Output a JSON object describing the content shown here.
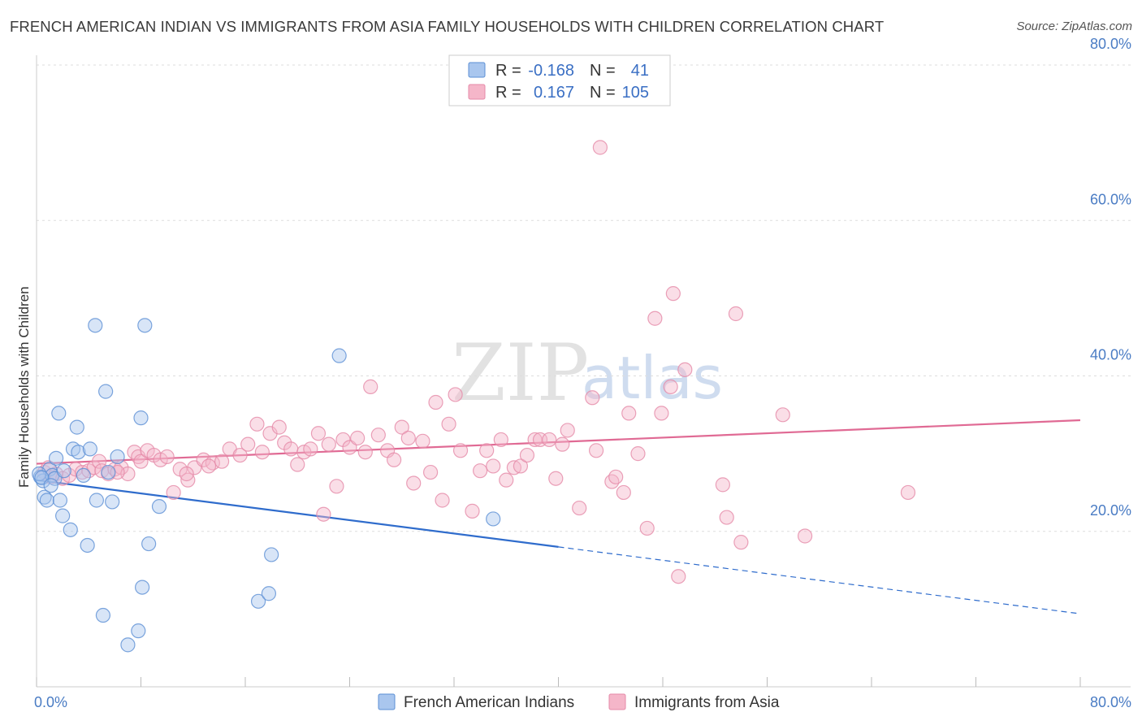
{
  "header": {
    "title": "FRENCH AMERICAN INDIAN VS IMMIGRANTS FROM ASIA FAMILY HOUSEHOLDS WITH CHILDREN CORRELATION CHART",
    "source": "Source: ZipAtlas.com"
  },
  "watermark": {
    "zip": "ZIP",
    "atlas": "atlas"
  },
  "colors": {
    "blue_fill": "#a9c6ee",
    "blue_stroke": "#5b8fd4",
    "blue_line": "#2f6ccc",
    "pink_fill": "#f5b6c9",
    "pink_stroke": "#e58aa8",
    "pink_line": "#e06a94",
    "tick_text": "#4a7cc4",
    "grid": "#dddddd"
  },
  "legend": {
    "r_label": "R =",
    "n_label": "N =",
    "rows": [
      {
        "r": "-0.168",
        "n": "41"
      },
      {
        "r": "0.167",
        "n": "105"
      }
    ]
  },
  "chart_data": {
    "type": "scatter",
    "title": "FRENCH AMERICAN INDIAN VS IMMIGRANTS FROM ASIA FAMILY HOUSEHOLDS WITH CHILDREN CORRELATION CHART",
    "xlabel": "",
    "ylabel": "Family Households with Children",
    "xlim": [
      0,
      80
    ],
    "ylim": [
      0,
      80
    ],
    "x_tick_labels": [
      "0.0%",
      "80.0%"
    ],
    "y_ticks": [
      20,
      40,
      60,
      80
    ],
    "y_tick_labels": [
      "20.0%",
      "40.0%",
      "60.0%",
      "80.0%"
    ],
    "grid": true,
    "legend_position": "bottom",
    "series": [
      {
        "name": "French American Indians",
        "color": "blue",
        "r": -0.168,
        "n": 41,
        "trend": {
          "x0": 0,
          "y0": 26.6,
          "x1": 40,
          "y1": 18.0,
          "dashed_to_x": 80,
          "dashed_to_y": 9.4
        },
        "points": [
          [
            0.3,
            27.0
          ],
          [
            0.5,
            26.5
          ],
          [
            0.6,
            24.4
          ],
          [
            0.8,
            24.0
          ],
          [
            1.0,
            28.0
          ],
          [
            1.2,
            27.2
          ],
          [
            1.4,
            26.8
          ],
          [
            1.5,
            29.4
          ],
          [
            1.7,
            35.2
          ],
          [
            1.8,
            24.0
          ],
          [
            2.0,
            22.0
          ],
          [
            2.1,
            27.8
          ],
          [
            2.6,
            20.2
          ],
          [
            2.8,
            30.6
          ],
          [
            3.1,
            33.4
          ],
          [
            3.2,
            30.2
          ],
          [
            3.6,
            27.2
          ],
          [
            3.9,
            18.2
          ],
          [
            4.1,
            30.6
          ],
          [
            4.5,
            46.5
          ],
          [
            4.6,
            24.0
          ],
          [
            5.1,
            9.2
          ],
          [
            5.3,
            38.0
          ],
          [
            5.5,
            27.6
          ],
          [
            5.8,
            23.8
          ],
          [
            6.2,
            29.6
          ],
          [
            7.0,
            5.4
          ],
          [
            7.8,
            7.2
          ],
          [
            8.0,
            34.6
          ],
          [
            8.1,
            12.8
          ],
          [
            8.3,
            46.5
          ],
          [
            8.6,
            18.4
          ],
          [
            9.4,
            23.2
          ],
          [
            17.0,
            11.0
          ],
          [
            17.8,
            12.0
          ],
          [
            18.0,
            17.0
          ],
          [
            23.2,
            42.6
          ],
          [
            35.0,
            21.6
          ],
          [
            0.2,
            27.4
          ],
          [
            0.4,
            26.9
          ],
          [
            1.1,
            25.9
          ]
        ]
      },
      {
        "name": "Immigrants from Asia",
        "color": "pink",
        "r": 0.167,
        "n": 105,
        "trend": {
          "x0": 0,
          "y0": 28.7,
          "x1": 80,
          "y1": 34.3
        },
        "points": [
          [
            0.6,
            27.6
          ],
          [
            0.9,
            28.2
          ],
          [
            1.1,
            27.0
          ],
          [
            1.5,
            27.4
          ],
          [
            2.0,
            26.8
          ],
          [
            2.5,
            27.2
          ],
          [
            3.0,
            28.0
          ],
          [
            3.5,
            27.6
          ],
          [
            4.0,
            27.8
          ],
          [
            4.4,
            28.2
          ],
          [
            4.8,
            29.0
          ],
          [
            5.0,
            27.8
          ],
          [
            5.5,
            27.4
          ],
          [
            6.0,
            28.0
          ],
          [
            6.5,
            28.2
          ],
          [
            7.0,
            27.4
          ],
          [
            7.5,
            30.2
          ],
          [
            7.8,
            29.6
          ],
          [
            8.0,
            29.0
          ],
          [
            8.5,
            30.4
          ],
          [
            9.0,
            29.8
          ],
          [
            9.5,
            29.2
          ],
          [
            10.0,
            29.6
          ],
          [
            10.5,
            25.0
          ],
          [
            11.0,
            28.0
          ],
          [
            11.6,
            26.6
          ],
          [
            12.1,
            28.2
          ],
          [
            12.8,
            29.2
          ],
          [
            13.5,
            28.8
          ],
          [
            14.2,
            29.0
          ],
          [
            14.8,
            30.6
          ],
          [
            15.6,
            29.8
          ],
          [
            16.2,
            31.2
          ],
          [
            16.9,
            33.8
          ],
          [
            17.3,
            30.2
          ],
          [
            17.9,
            32.6
          ],
          [
            18.6,
            33.4
          ],
          [
            19.0,
            31.4
          ],
          [
            19.5,
            30.6
          ],
          [
            20.0,
            28.6
          ],
          [
            20.5,
            30.2
          ],
          [
            21.0,
            30.6
          ],
          [
            21.6,
            32.6
          ],
          [
            22.0,
            22.2
          ],
          [
            22.4,
            31.2
          ],
          [
            23.0,
            25.8
          ],
          [
            23.5,
            31.8
          ],
          [
            24.0,
            30.8
          ],
          [
            24.6,
            32.0
          ],
          [
            25.2,
            30.2
          ],
          [
            25.6,
            38.6
          ],
          [
            26.2,
            32.4
          ],
          [
            26.9,
            30.4
          ],
          [
            27.4,
            29.2
          ],
          [
            28.0,
            33.4
          ],
          [
            28.5,
            32.0
          ],
          [
            28.9,
            26.2
          ],
          [
            29.6,
            31.6
          ],
          [
            30.2,
            27.6
          ],
          [
            30.6,
            36.6
          ],
          [
            31.1,
            24.0
          ],
          [
            31.6,
            33.8
          ],
          [
            32.1,
            37.6
          ],
          [
            32.5,
            30.4
          ],
          [
            33.4,
            22.6
          ],
          [
            34.0,
            27.8
          ],
          [
            34.5,
            30.4
          ],
          [
            35.0,
            28.4
          ],
          [
            35.6,
            31.8
          ],
          [
            36.0,
            26.6
          ],
          [
            36.6,
            28.2
          ],
          [
            37.1,
            28.4
          ],
          [
            37.6,
            29.8
          ],
          [
            38.2,
            31.8
          ],
          [
            38.6,
            31.8
          ],
          [
            39.3,
            31.8
          ],
          [
            39.8,
            26.8
          ],
          [
            40.3,
            31.2
          ],
          [
            40.7,
            33.0
          ],
          [
            41.6,
            23.0
          ],
          [
            42.6,
            37.2
          ],
          [
            42.9,
            30.4
          ],
          [
            43.2,
            69.4
          ],
          [
            44.1,
            26.4
          ],
          [
            44.4,
            27.0
          ],
          [
            45.0,
            25.0
          ],
          [
            45.4,
            35.2
          ],
          [
            46.1,
            30.0
          ],
          [
            46.8,
            20.4
          ],
          [
            47.4,
            47.4
          ],
          [
            47.9,
            35.2
          ],
          [
            48.6,
            38.6
          ],
          [
            48.8,
            50.6
          ],
          [
            49.2,
            14.2
          ],
          [
            49.7,
            40.8
          ],
          [
            52.6,
            26.0
          ],
          [
            52.9,
            21.8
          ],
          [
            53.6,
            48.0
          ],
          [
            54.0,
            18.6
          ],
          [
            57.2,
            35.0
          ],
          [
            58.9,
            19.4
          ],
          [
            66.8,
            25.0
          ],
          [
            11.5,
            27.4
          ],
          [
            13.2,
            28.4
          ],
          [
            6.2,
            27.6
          ]
        ]
      }
    ]
  }
}
